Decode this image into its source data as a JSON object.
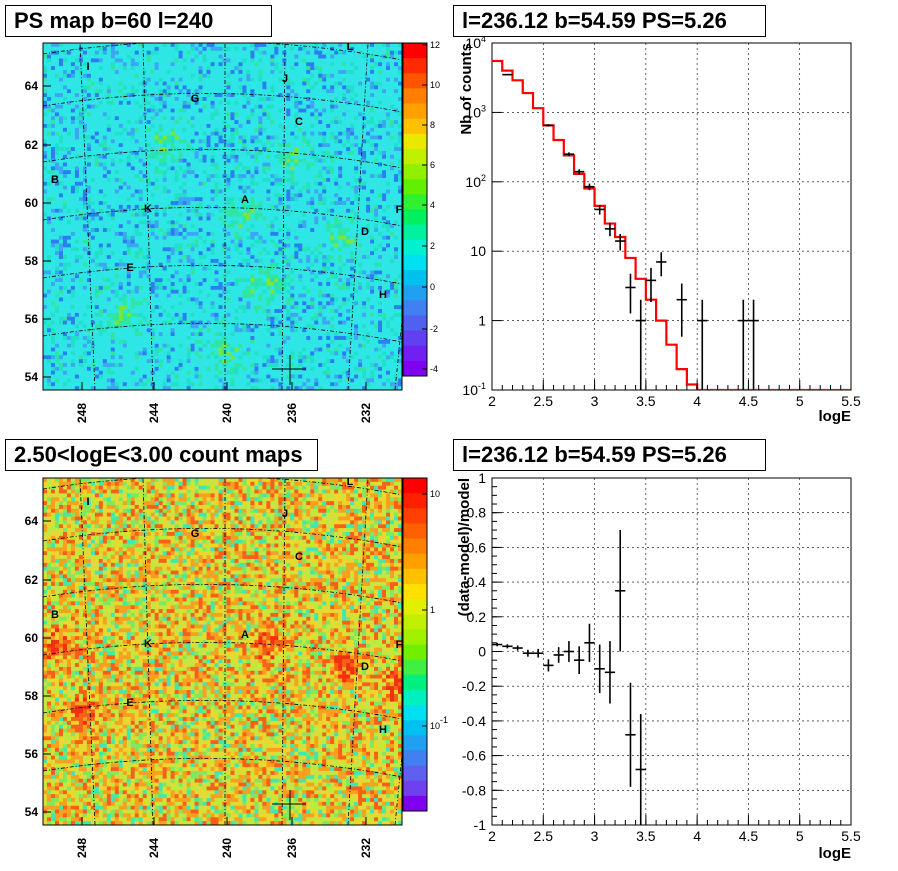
{
  "panels": {
    "top_left_title": "PS map b=60 l=240",
    "top_right_title": "l=236.12 b=54.59 PS=5.26",
    "bottom_left_title": "2.50<logE<3.00 count maps",
    "bottom_right_title": "l=236.12 b=54.59 PS=5.26"
  },
  "colors": {
    "model": "#ff0000",
    "data": "#000000",
    "grid": "#000000"
  },
  "chart_data": [
    {
      "type": "heatmap",
      "title": "PS map b=60 l=240",
      "x_ticks": [
        "248",
        "244",
        "240",
        "236",
        "232"
      ],
      "y_ticks": [
        "54",
        "56",
        "58",
        "60",
        "62",
        "64"
      ],
      "colorbar_ticks": [
        "12",
        "10",
        "8",
        "6",
        "4",
        "2",
        "0",
        "-2",
        "-4"
      ],
      "colorbar_range": [
        -5,
        12
      ],
      "source_labels": [
        "A",
        "B",
        "C",
        "D",
        "E",
        "F",
        "G",
        "H",
        "I",
        "J",
        "K",
        "L"
      ],
      "grid": true
    },
    {
      "type": "line",
      "title": "l=236.12 b=54.59 PS=5.26",
      "xlabel": "logE",
      "ylabel": "Nb of counts",
      "xlim": [
        2,
        5.5
      ],
      "ylim": [
        0.1,
        10000
      ],
      "y_log": true,
      "grid": true,
      "x_ticks": [
        "2",
        "2.5",
        "3",
        "3.5",
        "4",
        "4.5",
        "5",
        "5.5"
      ],
      "y_ticks": [
        {
          "base": "10",
          "exp": "-1"
        },
        {
          "base": "1",
          "exp": ""
        },
        {
          "base": "10",
          "exp": ""
        },
        {
          "base": "10",
          "exp": "2"
        },
        {
          "base": "10",
          "exp": "3"
        },
        {
          "base": "10",
          "exp": "4"
        }
      ],
      "model_step": {
        "edges": [
          2.0,
          2.1,
          2.2,
          2.3,
          2.4,
          2.5,
          2.6,
          2.7,
          2.8,
          2.9,
          3.0,
          3.1,
          3.2,
          3.3,
          3.4,
          3.5,
          3.6,
          3.7,
          3.8,
          3.9,
          4.0,
          5.5
        ],
        "values": [
          5500,
          4000,
          2900,
          1900,
          1150,
          650,
          400,
          240,
          130,
          80,
          45,
          25,
          16,
          8,
          4,
          2,
          1.0,
          0.45,
          0.2,
          0.12,
          0.1
        ]
      },
      "data_points": [
        {
          "x": 2.15,
          "y": 3500
        },
        {
          "x": 2.55,
          "y": 650
        },
        {
          "x": 2.75,
          "y": 250
        },
        {
          "x": 2.85,
          "y": 140
        },
        {
          "x": 2.95,
          "y": 85
        },
        {
          "x": 3.05,
          "y": 40
        },
        {
          "x": 3.15,
          "y": 21
        },
        {
          "x": 3.25,
          "y": 14
        },
        {
          "x": 3.35,
          "y": 3
        },
        {
          "x": 3.45,
          "y": 1
        },
        {
          "x": 3.55,
          "y": 3.8
        },
        {
          "x": 3.65,
          "y": 7
        },
        {
          "x": 3.85,
          "y": 2
        },
        {
          "x": 4.05,
          "y": 1
        },
        {
          "x": 4.45,
          "y": 1
        },
        {
          "x": 4.55,
          "y": 1
        }
      ]
    },
    {
      "type": "heatmap",
      "title": "2.50<logE<3.00 count maps",
      "x_ticks": [
        "248",
        "244",
        "240",
        "236",
        "232"
      ],
      "y_ticks": [
        "54",
        "56",
        "58",
        "60",
        "62",
        "64"
      ],
      "colorbar_ticks": [
        {
          "base": "10",
          "exp": ""
        },
        {
          "base": "1",
          "exp": ""
        },
        {
          "base": "10",
          "exp": "-1"
        }
      ],
      "colorbar_log": true,
      "source_labels": [
        "A",
        "B",
        "C",
        "D",
        "E",
        "F",
        "G",
        "H",
        "I",
        "J",
        "K",
        "L"
      ],
      "grid": true
    },
    {
      "type": "scatter",
      "title": "l=236.12 b=54.59 PS=5.26",
      "xlabel": "logE",
      "ylabel": "(data-model)/model",
      "xlim": [
        2,
        5.5
      ],
      "ylim": [
        -1,
        1
      ],
      "grid": true,
      "x_ticks": [
        "2",
        "2.5",
        "3",
        "3.5",
        "4",
        "4.5",
        "5",
        "5.5"
      ],
      "y_ticks": [
        "-1",
        "-0.8",
        "-0.6",
        "-0.4",
        "-0.2",
        "0",
        "0.2",
        "0.4",
        "0.6",
        "0.8",
        "1"
      ],
      "points": [
        {
          "x": 2.05,
          "y": 0.04,
          "err": 0.01
        },
        {
          "x": 2.15,
          "y": 0.03,
          "err": 0.012
        },
        {
          "x": 2.25,
          "y": 0.02,
          "err": 0.015
        },
        {
          "x": 2.35,
          "y": -0.01,
          "err": 0.02
        },
        {
          "x": 2.45,
          "y": -0.01,
          "err": 0.025
        },
        {
          "x": 2.55,
          "y": -0.08,
          "err": 0.035
        },
        {
          "x": 2.65,
          "y": -0.02,
          "err": 0.045
        },
        {
          "x": 2.75,
          "y": 0.0,
          "err": 0.06
        },
        {
          "x": 2.85,
          "y": -0.05,
          "err": 0.08
        },
        {
          "x": 2.95,
          "y": 0.05,
          "err": 0.11
        },
        {
          "x": 3.05,
          "y": -0.1,
          "err": 0.14
        },
        {
          "x": 3.15,
          "y": -0.12,
          "err": 0.18
        },
        {
          "x": 3.25,
          "y": 0.35,
          "err": 0.35
        },
        {
          "x": 3.35,
          "y": -0.48,
          "err": 0.3
        },
        {
          "x": 3.45,
          "y": -0.68,
          "err": 0.32
        }
      ]
    }
  ]
}
